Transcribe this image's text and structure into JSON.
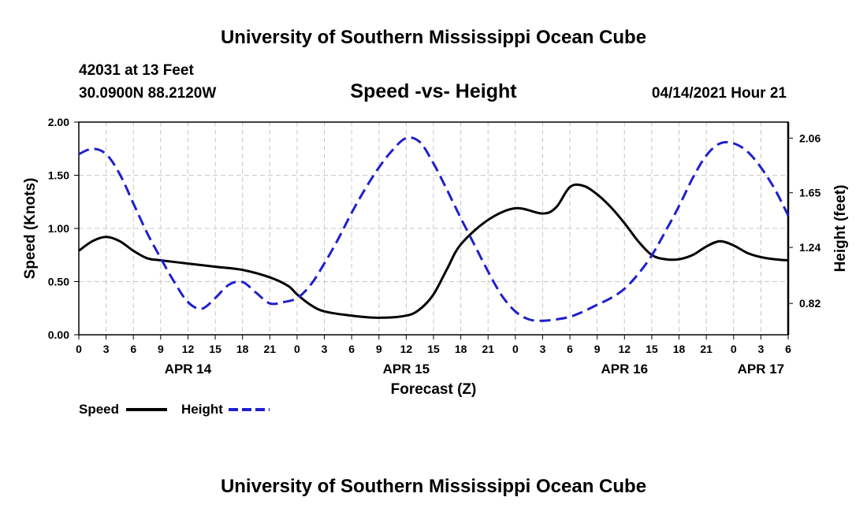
{
  "header": {
    "title_top": "University of Southern Mississippi Ocean Cube",
    "station": "42031 at 13 Feet",
    "coords": "30.0900N  88.2120W",
    "chart_title": "Speed -vs- Height",
    "datetime": "04/14/2021 Hour 21",
    "title_bottom": "University of Southern Mississippi Ocean Cube"
  },
  "legend": {
    "speed_label": "Speed",
    "height_label": "Height"
  },
  "colors": {
    "speed": "#000000",
    "height": "#1f1fcc",
    "grid": "#c8c8c8"
  },
  "chart_data": {
    "type": "line",
    "title": "Speed -vs- Height",
    "xlabel": "Forecast (Z)",
    "ylabel": "Speed (Knots)",
    "y2label": "Height (feet)",
    "xlim": [
      0,
      78
    ],
    "ylim": [
      0,
      2.0
    ],
    "y2lim": [
      0.585,
      2.18
    ],
    "x_ticks": [
      0,
      3,
      6,
      9,
      12,
      15,
      18,
      21,
      24,
      27,
      30,
      33,
      36,
      39,
      42,
      45,
      48,
      51,
      54,
      57,
      60,
      63,
      66,
      69,
      72,
      75,
      78
    ],
    "x_tick_labels": [
      "0",
      "3",
      "6",
      "9",
      "12",
      "15",
      "18",
      "21",
      "0",
      "3",
      "6",
      "9",
      "12",
      "15",
      "18",
      "21",
      "0",
      "3",
      "6",
      "9",
      "12",
      "15",
      "18",
      "21",
      "0",
      "3",
      "6"
    ],
    "date_labels": [
      {
        "label": "APR 14",
        "x": 12
      },
      {
        "label": "APR 15",
        "x": 36
      },
      {
        "label": "APR 16",
        "x": 60
      },
      {
        "label": "APR 17",
        "x": 75
      }
    ],
    "y_ticks": [
      0.0,
      0.5,
      1.0,
      1.5,
      2.0
    ],
    "y_tick_labels": [
      "0.00",
      "0.50",
      "1.00",
      "1.50",
      "2.00"
    ],
    "y2_ticks": [
      0.82,
      1.24,
      1.65,
      2.06
    ],
    "y2_tick_labels": [
      "0.82",
      "1.24",
      "1.65",
      "2.06"
    ],
    "grid": true,
    "series": [
      {
        "name": "Speed",
        "axis": "left",
        "x": [
          0,
          1.5,
          3,
          4.5,
          6,
          7.5,
          9,
          12,
          15,
          18,
          21,
          23,
          24,
          25.5,
          27,
          30,
          33,
          36,
          37.5,
          39,
          40.5,
          42,
          45,
          48,
          51,
          52.5,
          54,
          55.5,
          57,
          58.5,
          60,
          61.5,
          63,
          64.5,
          66,
          67.5,
          69,
          70.5,
          72,
          73.5,
          75,
          76.5,
          78
        ],
        "y": [
          0.79,
          0.88,
          0.92,
          0.88,
          0.79,
          0.72,
          0.7,
          0.67,
          0.64,
          0.61,
          0.54,
          0.46,
          0.38,
          0.28,
          0.22,
          0.18,
          0.16,
          0.18,
          0.24,
          0.38,
          0.62,
          0.85,
          1.08,
          1.19,
          1.14,
          1.2,
          1.39,
          1.4,
          1.32,
          1.2,
          1.05,
          0.88,
          0.75,
          0.71,
          0.71,
          0.75,
          0.83,
          0.88,
          0.84,
          0.77,
          0.73,
          0.71,
          0.7
        ]
      },
      {
        "name": "Height",
        "axis": "right",
        "x": [
          0,
          1.5,
          3,
          4.5,
          6,
          7.5,
          9,
          10.5,
          12,
          13.5,
          15,
          16.5,
          18,
          19.5,
          21,
          22.5,
          24,
          25.5,
          27,
          28.5,
          30,
          31.5,
          33,
          34.5,
          36,
          37.5,
          39,
          40.5,
          42,
          43.5,
          45,
          46.5,
          48,
          49.5,
          51,
          52.5,
          54,
          55.5,
          57,
          58.5,
          60,
          61.5,
          63,
          64.5,
          66,
          67.5,
          69,
          70.5,
          72,
          73.5,
          75,
          76.5,
          78
        ],
        "y": [
          1.94,
          1.98,
          1.94,
          1.79,
          1.57,
          1.35,
          1.16,
          0.98,
          0.83,
          0.78,
          0.86,
          0.96,
          0.98,
          0.9,
          0.82,
          0.83,
          0.86,
          0.96,
          1.12,
          1.3,
          1.5,
          1.68,
          1.84,
          1.97,
          2.06,
          2.03,
          1.87,
          1.67,
          1.46,
          1.26,
          1.06,
          0.88,
          0.76,
          0.7,
          0.69,
          0.7,
          0.72,
          0.76,
          0.81,
          0.86,
          0.93,
          1.04,
          1.18,
          1.36,
          1.55,
          1.76,
          1.93,
          2.02,
          2.02,
          1.96,
          1.84,
          1.68,
          1.48
        ]
      }
    ]
  }
}
